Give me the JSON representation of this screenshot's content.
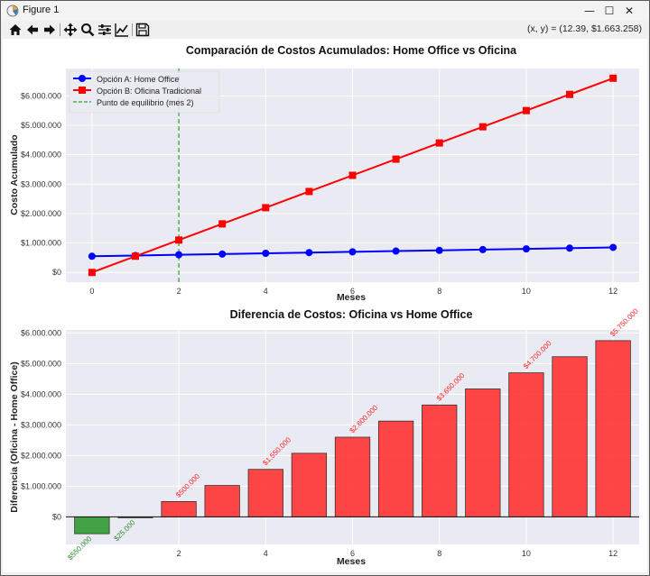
{
  "window": {
    "title": "Figure 1",
    "controls": {
      "minimize": "—",
      "maximize": "☐",
      "close": "✕"
    }
  },
  "toolbar": {
    "buttons": [
      "home-icon",
      "back-icon",
      "forward-icon",
      "pan-icon",
      "zoom-icon",
      "configure-subplots-icon",
      "edit-axis-icon",
      "save-icon"
    ],
    "coords": "(x, y) = (12.39, $1.663.258)"
  },
  "chart_data": [
    {
      "type": "line",
      "title": "Comparación de Costos Acumulados: Home Office vs Oficina",
      "xlabel": "Meses",
      "ylabel": "Costo Acumulado",
      "xlim": [
        -0.6,
        12.6
      ],
      "ylim": [
        -330000,
        6930000
      ],
      "xticks": [
        0,
        2,
        4,
        6,
        8,
        10,
        12
      ],
      "xtick_labels": [
        "0",
        "2",
        "4",
        "6",
        "8",
        "10",
        "12"
      ],
      "yticks": [
        0,
        1000000,
        2000000,
        3000000,
        4000000,
        5000000,
        6000000
      ],
      "ytick_labels": [
        "$0",
        "$1.000.000",
        "$2.000.000",
        "$3.000.000",
        "$4.000.000",
        "$5.000.000",
        "$6.000.000"
      ],
      "grid": true,
      "legend_position": "upper-left",
      "series": [
        {
          "name": "Opción A: Home Office",
          "color": "#0000ff",
          "marker": "circle",
          "x": [
            0,
            1,
            2,
            3,
            4,
            5,
            6,
            7,
            8,
            9,
            10,
            11,
            12
          ],
          "values": [
            550000,
            575000,
            600000,
            625000,
            650000,
            675000,
            700000,
            725000,
            750000,
            775000,
            800000,
            825000,
            850000
          ]
        },
        {
          "name": "Opción B: Oficina Tradicional",
          "color": "#ff0000",
          "marker": "square",
          "x": [
            0,
            1,
            2,
            3,
            4,
            5,
            6,
            7,
            8,
            9,
            10,
            11,
            12
          ],
          "values": [
            0,
            550000,
            1100000,
            1650000,
            2200000,
            2750000,
            3300000,
            3850000,
            4400000,
            4950000,
            5500000,
            6050000,
            6600000
          ]
        }
      ],
      "vline": {
        "x": 2,
        "label": "Punto de equilibrio (mes 2)",
        "color": "#2ca02c"
      }
    },
    {
      "type": "bar",
      "title": "Diferencia de Costos: Oficina vs Home Office",
      "xlabel": "Meses",
      "ylabel": "Diferencia (Oficina - Home Office)",
      "xlim": [
        -0.6,
        12.6
      ],
      "ylim": [
        -900000,
        6100000
      ],
      "xticks": [
        2,
        4,
        6,
        8,
        10,
        12
      ],
      "xtick_labels": [
        "2",
        "4",
        "6",
        "8",
        "10",
        "12"
      ],
      "yticks": [
        0,
        1000000,
        2000000,
        3000000,
        4000000,
        5000000,
        6000000
      ],
      "ytick_labels": [
        "$0",
        "$1.000.000",
        "$2.000.000",
        "$3.000.000",
        "$4.000.000",
        "$5.000.000",
        "$6.000.000"
      ],
      "grid": true,
      "categories": [
        0,
        1,
        2,
        3,
        4,
        5,
        6,
        7,
        8,
        9,
        10,
        11,
        12
      ],
      "values": [
        -550000,
        -25000,
        500000,
        1025000,
        1550000,
        2075000,
        2600000,
        3125000,
        3650000,
        4175000,
        4700000,
        5225000,
        5750000
      ],
      "positive_color": "#ff3333",
      "negative_color": "#2e9a2e",
      "annotations": [
        {
          "index": 0,
          "text": "$550.000",
          "color": "#2e8b2e"
        },
        {
          "index": 1,
          "text": "$25.000",
          "color": "#2e8b2e"
        },
        {
          "index": 2,
          "text": "$500.000",
          "color": "#ff2222"
        },
        {
          "index": 4,
          "text": "$1.550.000",
          "color": "#ff2222"
        },
        {
          "index": 6,
          "text": "$2.600.000",
          "color": "#ff2222"
        },
        {
          "index": 8,
          "text": "$3.650.000",
          "color": "#ff2222"
        },
        {
          "index": 10,
          "text": "$4.700.000",
          "color": "#ff2222"
        },
        {
          "index": 12,
          "text": "$5.750.000",
          "color": "#ff2222"
        }
      ]
    }
  ]
}
